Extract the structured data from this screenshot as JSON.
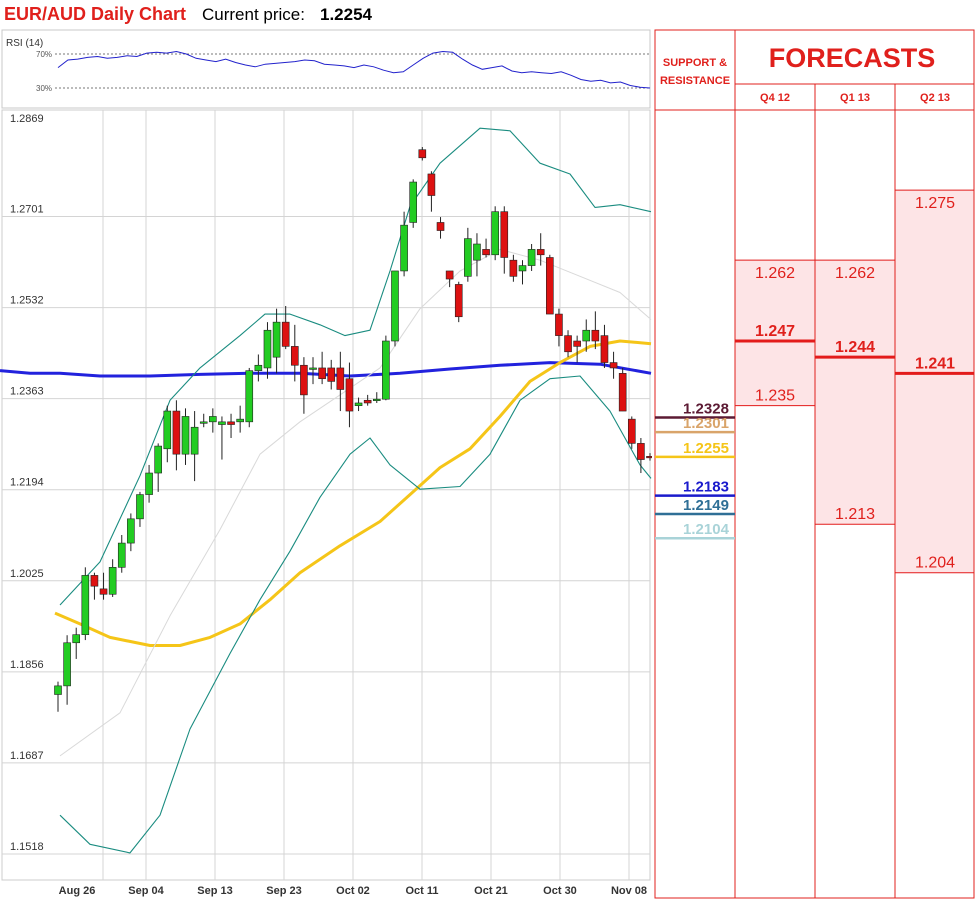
{
  "header": {
    "title": "EUR/AUD Daily Chart",
    "price_label": "Current price:",
    "price_value": "1.2254"
  },
  "rsi": {
    "label": "RSI (14)",
    "level_high": "70%",
    "level_low": "30%",
    "values": [
      54,
      63,
      64,
      66,
      67,
      65,
      66,
      68,
      67,
      71,
      72,
      71,
      73,
      70,
      65,
      63,
      61,
      64,
      60,
      57,
      55,
      58,
      59,
      60,
      61,
      63,
      62,
      58,
      57,
      56,
      54,
      57,
      55,
      51,
      48,
      49,
      57,
      65,
      71,
      73,
      72,
      64,
      57,
      52,
      54,
      56,
      50,
      48,
      49,
      48,
      47,
      49,
      45,
      40,
      38,
      39,
      36,
      37,
      33,
      31,
      30
    ]
  },
  "colors": {
    "title_red": "#e0201c",
    "candle_up": "#22cc22",
    "candle_down": "#dd1111",
    "sma_blue": "#2222dd",
    "sma_yellow": "#f5c518",
    "bollinger": "#1a8c80",
    "mid_band": "#d9d9d9",
    "forecast_fill": "#fde4e6",
    "forecast_line": "#e31b1b"
  },
  "chart_data": {
    "type": "candlestick",
    "title": "EUR/AUD Daily Chart",
    "current_price": 1.2254,
    "ylim": [
      1.1518,
      1.2869
    ],
    "y_ticks": [
      "1.2869",
      "1.2701",
      "1.2532",
      "1.2363",
      "1.2194",
      "1.2025",
      "1.1856",
      "1.1687",
      "1.1518"
    ],
    "x_ticks": [
      "Aug 26",
      "Sep 04",
      "Sep 13",
      "Sep 23",
      "Oct 02",
      "Oct 11",
      "Oct 21",
      "Oct 30",
      "Nov 08"
    ],
    "candles": [
      [
        1.1814,
        1.1838,
        1.1782,
        1.183
      ],
      [
        1.183,
        1.1924,
        1.1795,
        1.191
      ],
      [
        1.191,
        1.1938,
        1.188,
        1.1925
      ],
      [
        1.1925,
        1.205,
        1.1915,
        1.2035
      ],
      [
        1.2035,
        1.204,
        1.199,
        1.2015
      ],
      [
        1.201,
        1.204,
        1.199,
        1.2
      ],
      [
        1.2,
        1.2065,
        1.1995,
        1.205
      ],
      [
        1.205,
        1.211,
        1.204,
        1.2095
      ],
      [
        1.2095,
        1.215,
        1.208,
        1.214
      ],
      [
        1.214,
        1.219,
        1.2125,
        1.2185
      ],
      [
        1.2185,
        1.224,
        1.217,
        1.2225
      ],
      [
        1.2225,
        1.228,
        1.219,
        1.2275
      ],
      [
        1.227,
        1.235,
        1.2245,
        1.234
      ],
      [
        1.234,
        1.236,
        1.223,
        1.226
      ],
      [
        1.226,
        1.2345,
        1.224,
        1.233
      ],
      [
        1.226,
        1.234,
        1.221,
        1.231
      ],
      [
        1.232,
        1.2335,
        1.231,
        1.232
      ],
      [
        1.232,
        1.2345,
        1.23,
        1.233
      ],
      [
        1.2315,
        1.233,
        1.225,
        1.232
      ],
      [
        1.232,
        1.2335,
        1.229,
        1.2315
      ],
      [
        1.232,
        1.235,
        1.23,
        1.2325
      ],
      [
        1.232,
        1.242,
        1.231,
        1.2415
      ],
      [
        1.2415,
        1.2445,
        1.2395,
        1.2425
      ],
      [
        1.242,
        1.2505,
        1.24,
        1.249
      ],
      [
        1.244,
        1.253,
        1.241,
        1.2505
      ],
      [
        1.2505,
        1.2535,
        1.2455,
        1.246
      ],
      [
        1.246,
        1.25,
        1.2395,
        1.2425
      ],
      [
        1.2425,
        1.244,
        1.2335,
        1.237
      ],
      [
        1.242,
        1.244,
        1.239,
        1.242
      ],
      [
        1.242,
        1.245,
        1.239,
        1.24
      ],
      [
        1.242,
        1.2435,
        1.238,
        1.2395
      ],
      [
        1.242,
        1.245,
        1.234,
        1.238
      ],
      [
        1.24,
        1.243,
        1.231,
        1.234
      ],
      [
        1.235,
        1.2365,
        1.234,
        1.2355
      ],
      [
        1.236,
        1.237,
        1.235,
        1.2355
      ],
      [
        1.236,
        1.2375,
        1.2355,
        1.2362
      ],
      [
        1.2362,
        1.248,
        1.236,
        1.247
      ],
      [
        1.247,
        1.26,
        1.246,
        1.26
      ],
      [
        1.26,
        1.271,
        1.259,
        1.2685
      ],
      [
        1.269,
        1.277,
        1.268,
        1.2765
      ],
      [
        1.2825,
        1.283,
        1.2805,
        1.281
      ],
      [
        1.278,
        1.2785,
        1.271,
        1.274
      ],
      [
        1.269,
        1.27,
        1.266,
        1.2675
      ],
      [
        1.26,
        1.26,
        1.257,
        1.2585
      ],
      [
        1.2575,
        1.258,
        1.2505,
        1.2515
      ],
      [
        1.259,
        1.268,
        1.258,
        1.266
      ],
      [
        1.262,
        1.267,
        1.259,
        1.265
      ],
      [
        1.264,
        1.266,
        1.2625,
        1.263
      ],
      [
        1.263,
        1.272,
        1.262,
        1.271
      ],
      [
        1.271,
        1.272,
        1.2595,
        1.2625
      ],
      [
        1.262,
        1.263,
        1.258,
        1.259
      ],
      [
        1.26,
        1.262,
        1.2575,
        1.261
      ],
      [
        1.261,
        1.265,
        1.26,
        1.264
      ],
      [
        1.264,
        1.267,
        1.261,
        1.263
      ],
      [
        1.2625,
        1.263,
        1.252,
        1.252
      ],
      [
        1.252,
        1.253,
        1.246,
        1.248
      ],
      [
        1.248,
        1.249,
        1.244,
        1.245
      ],
      [
        1.247,
        1.248,
        1.243,
        1.246
      ],
      [
        1.247,
        1.251,
        1.245,
        1.249
      ],
      [
        1.249,
        1.2525,
        1.2455,
        1.247
      ],
      [
        1.248,
        1.25,
        1.242,
        1.243
      ],
      [
        1.243,
        1.245,
        1.24,
        1.242
      ],
      [
        1.241,
        1.242,
        1.234,
        1.234
      ],
      [
        1.2325,
        1.233,
        1.227,
        1.228
      ],
      [
        1.228,
        1.229,
        1.2225,
        1.225
      ],
      [
        1.2256,
        1.2262,
        1.2248,
        1.2254
      ]
    ],
    "series": [
      {
        "name": "",
        "role": "sma-blue",
        "values": [
          [
            0,
            1.2415
          ],
          [
            30,
            1.241
          ],
          [
            60,
            1.241
          ],
          [
            100,
            1.2405
          ],
          [
            150,
            1.2405
          ],
          [
            200,
            1.2408
          ],
          [
            250,
            1.241
          ],
          [
            300,
            1.241
          ],
          [
            350,
            1.2405
          ],
          [
            400,
            1.241
          ],
          [
            450,
            1.2418
          ],
          [
            500,
            1.2425
          ],
          [
            550,
            1.243
          ],
          [
            600,
            1.2427
          ],
          [
            651,
            1.241
          ]
        ]
      },
      {
        "name": "",
        "role": "sma-yellow",
        "values": [
          [
            55,
            1.1965
          ],
          [
            80,
            1.1945
          ],
          [
            110,
            1.192
          ],
          [
            150,
            1.1905
          ],
          [
            180,
            1.1905
          ],
          [
            210,
            1.192
          ],
          [
            240,
            1.1945
          ],
          [
            270,
            1.199
          ],
          [
            300,
            1.204
          ],
          [
            340,
            1.209
          ],
          [
            380,
            1.2135
          ],
          [
            410,
            1.2185
          ],
          [
            440,
            1.2235
          ],
          [
            470,
            1.227
          ],
          [
            500,
            1.233
          ],
          [
            530,
            1.2395
          ],
          [
            560,
            1.243
          ],
          [
            590,
            1.246
          ],
          [
            620,
            1.247
          ],
          [
            651,
            1.2465
          ]
        ]
      },
      {
        "name": "",
        "role": "bollinger-upper",
        "values": [
          [
            60,
            1.198
          ],
          [
            100,
            1.206
          ],
          [
            140,
            1.222
          ],
          [
            170,
            1.236
          ],
          [
            200,
            1.242
          ],
          [
            240,
            1.248
          ],
          [
            265,
            1.252
          ],
          [
            290,
            1.252
          ],
          [
            320,
            1.25
          ],
          [
            345,
            1.248
          ],
          [
            370,
            1.249
          ],
          [
            390,
            1.26
          ],
          [
            410,
            1.272
          ],
          [
            440,
            1.28
          ],
          [
            480,
            1.2865
          ],
          [
            510,
            1.286
          ],
          [
            540,
            1.28
          ],
          [
            570,
            1.278
          ],
          [
            595,
            1.2718
          ],
          [
            620,
            1.2723
          ],
          [
            651,
            1.271
          ]
        ]
      },
      {
        "name": "",
        "role": "bollinger-lower",
        "values": [
          [
            60,
            1.159
          ],
          [
            90,
            1.1536
          ],
          [
            130,
            1.152
          ],
          [
            160,
            1.159
          ],
          [
            190,
            1.175
          ],
          [
            230,
            1.189
          ],
          [
            260,
            1.199
          ],
          [
            290,
            1.208
          ],
          [
            320,
            1.218
          ],
          [
            350,
            1.226
          ],
          [
            370,
            1.229
          ],
          [
            390,
            1.224
          ],
          [
            420,
            1.2195
          ],
          [
            460,
            1.22
          ],
          [
            490,
            1.226
          ],
          [
            520,
            1.236
          ],
          [
            550,
            1.24
          ],
          [
            580,
            1.2405
          ],
          [
            610,
            1.234
          ],
          [
            640,
            1.224
          ],
          [
            651,
            1.2215
          ]
        ]
      },
      {
        "name": "",
        "role": "mid-band",
        "values": [
          [
            60,
            1.17
          ],
          [
            120,
            1.178
          ],
          [
            170,
            1.196
          ],
          [
            220,
            1.212
          ],
          [
            260,
            1.226
          ],
          [
            300,
            1.232
          ],
          [
            340,
            1.237
          ],
          [
            380,
            1.242
          ],
          [
            420,
            1.253
          ],
          [
            460,
            1.26
          ],
          [
            500,
            1.264
          ],
          [
            540,
            1.262
          ],
          [
            580,
            1.259
          ],
          [
            620,
            1.256
          ],
          [
            651,
            1.251
          ]
        ]
      }
    ]
  },
  "support_resistance": {
    "header_line1": "SUPPORT &",
    "header_line2": "RESISTANCE",
    "levels": [
      {
        "value": "1.2328",
        "price": 1.2328,
        "color": "#5c1a33"
      },
      {
        "value": "1.2301",
        "price": 1.2301,
        "color": "#d9a46a"
      },
      {
        "value": "1.2255",
        "price": 1.2255,
        "color": "#f5c518"
      },
      {
        "value": "1.2183",
        "price": 1.2183,
        "color": "#1a1acc"
      },
      {
        "value": "1.2149",
        "price": 1.2149,
        "color": "#2f6f96"
      },
      {
        "value": "1.2104",
        "price": 1.2104,
        "color": "#a9d3d8"
      }
    ]
  },
  "forecasts": {
    "title": "FORECASTS",
    "columns": [
      {
        "label": "Q4 12",
        "high": "1.262",
        "avg": "1.247",
        "low": "1.235",
        "high_v": 1.262,
        "avg_v": 1.247,
        "low_v": 1.235
      },
      {
        "label": "Q1 13",
        "high": "1.262",
        "avg": "1.244",
        "low": "1.213",
        "high_v": 1.262,
        "avg_v": 1.244,
        "low_v": 1.213
      },
      {
        "label": "Q2 13",
        "high": "1.275",
        "avg": "1.241",
        "low": "1.204",
        "high_v": 1.275,
        "avg_v": 1.241,
        "low_v": 1.204
      }
    ]
  }
}
